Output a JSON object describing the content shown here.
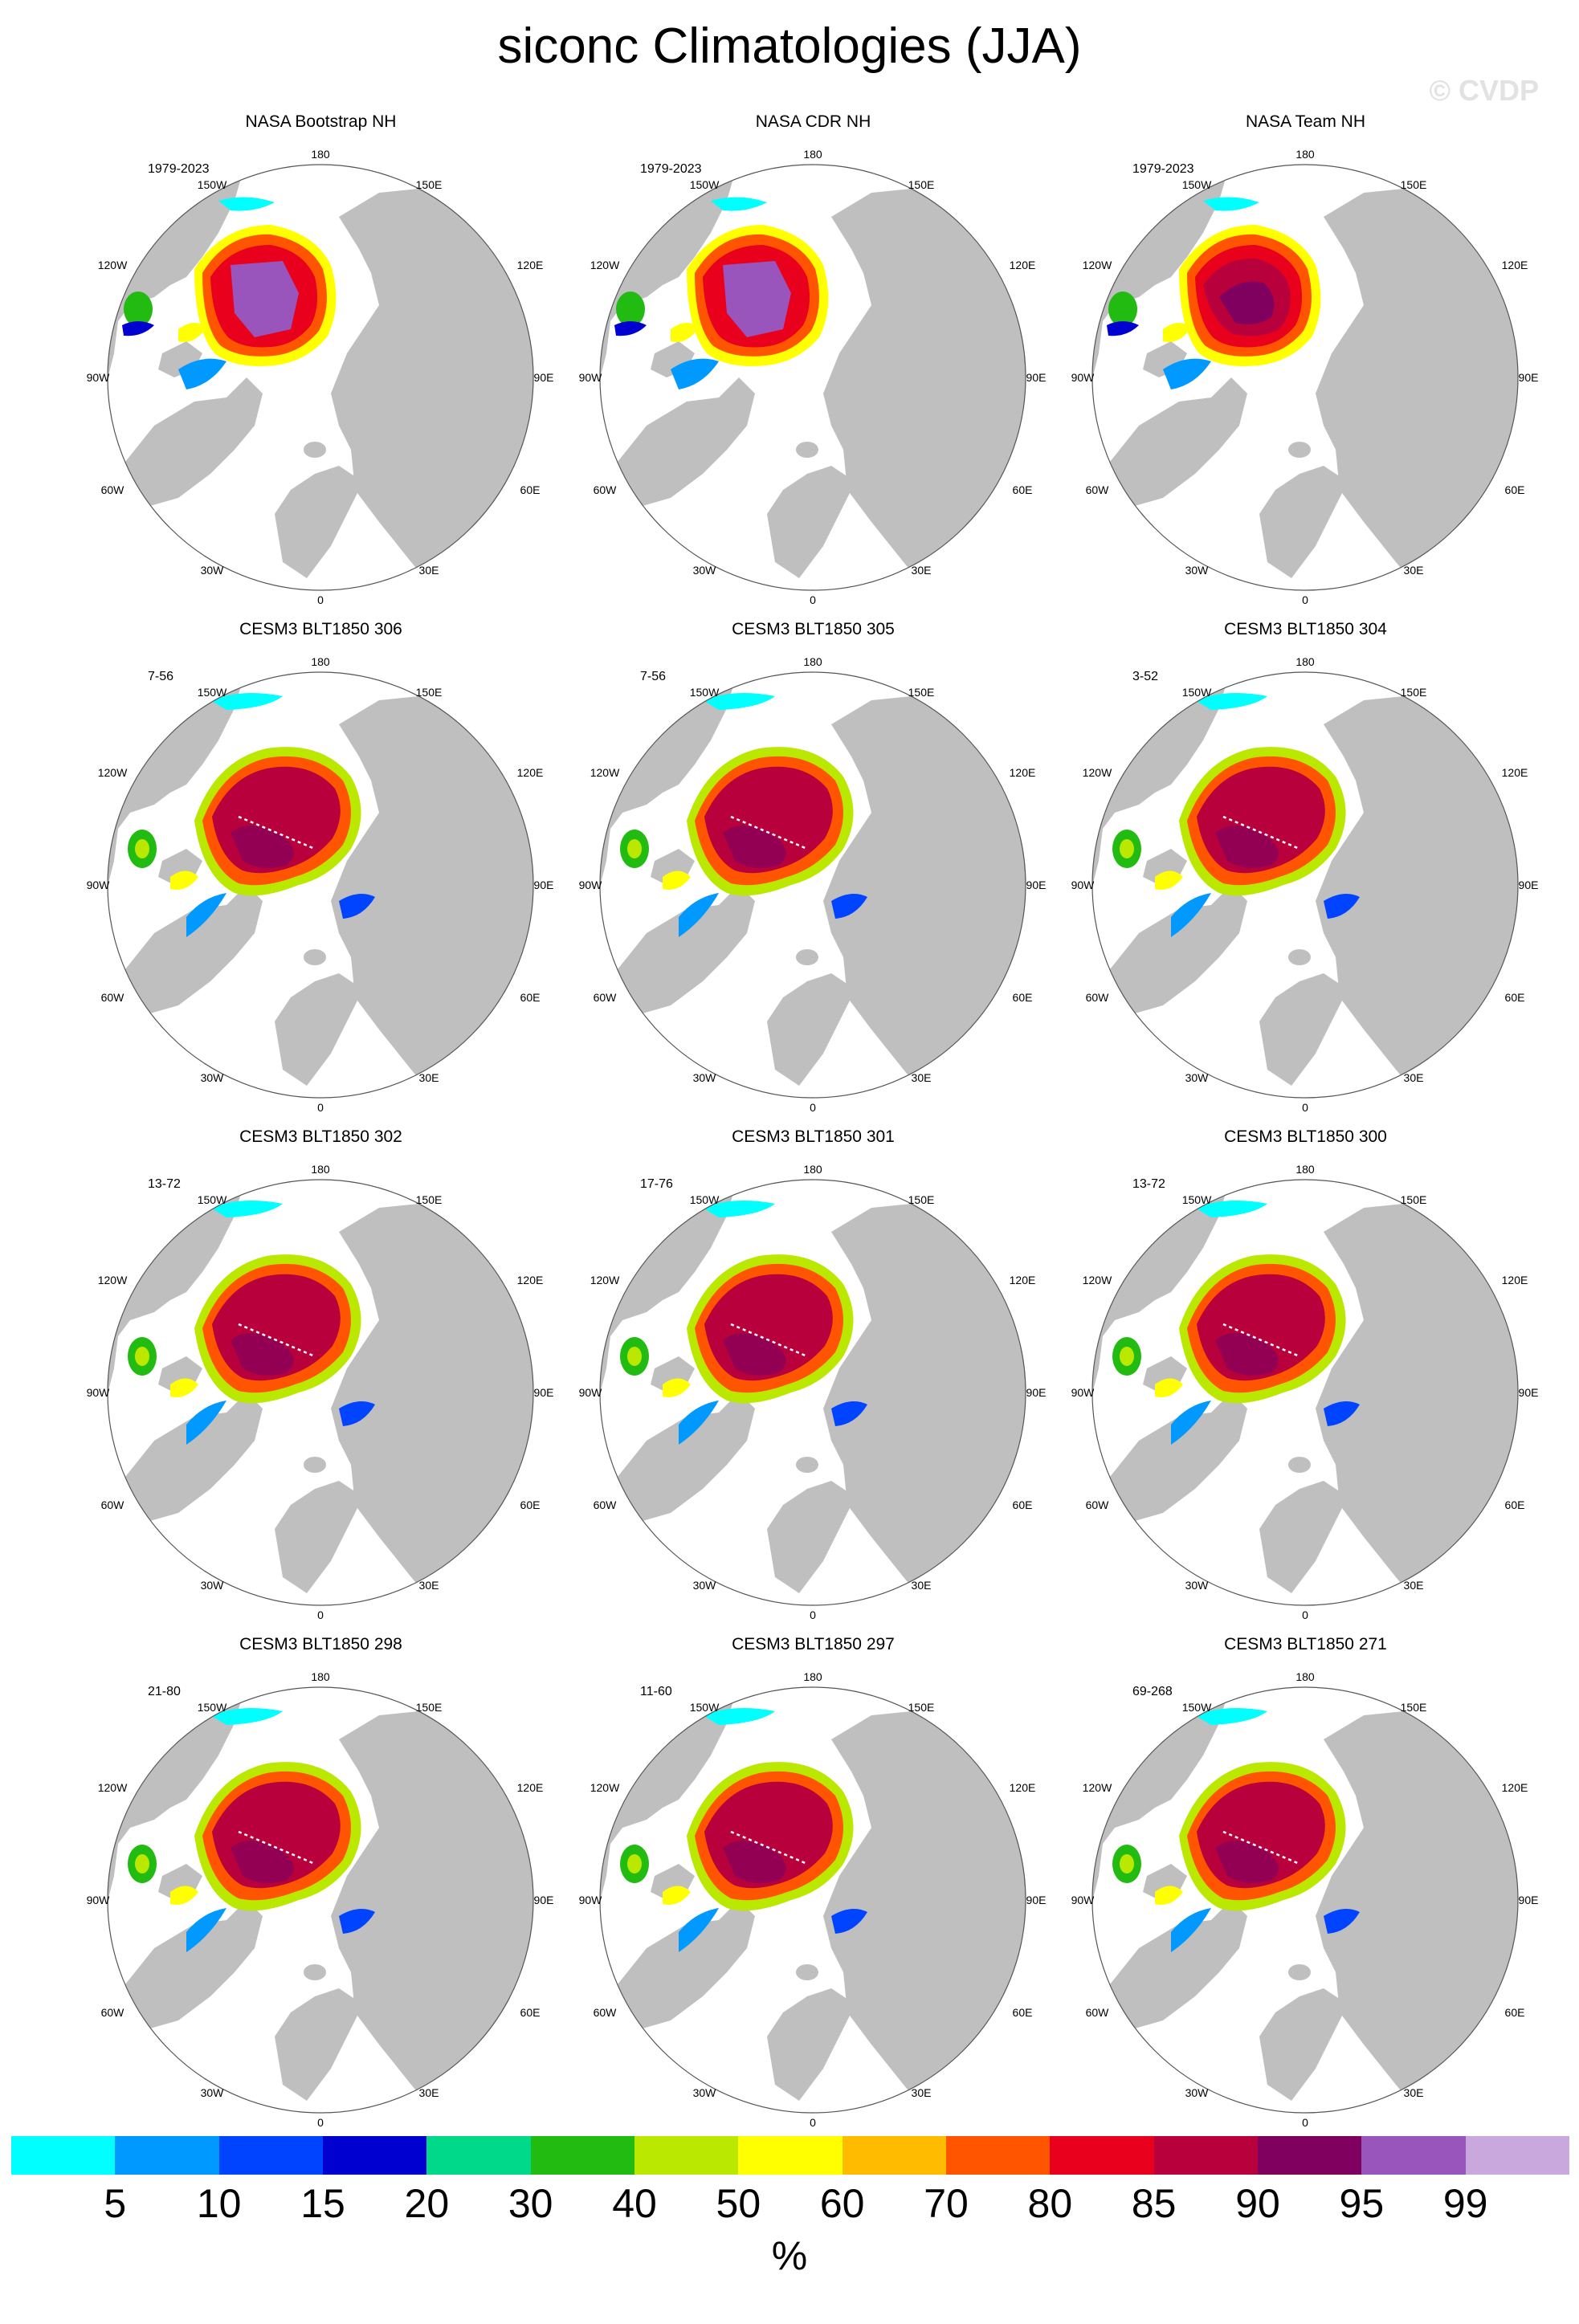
{
  "title": "siconc Climatologies (JJA)",
  "watermark": "© CVDP",
  "lon_labels": {
    "top": "180",
    "nw150": "150W",
    "ne150": "150E",
    "w120": "120W",
    "e120": "120E",
    "w90": "90W",
    "e90": "90E",
    "w60": "60W",
    "e60": "60E",
    "w30": "30W",
    "e30": "30E",
    "bottom": "0"
  },
  "panels": [
    {
      "name": "NASA Bootstrap NH",
      "years": "1979-2023",
      "style": "obs_boot"
    },
    {
      "name": "NASA CDR NH",
      "years": "1979-2023",
      "style": "obs_cdr"
    },
    {
      "name": "NASA Team NH",
      "years": "1979-2023",
      "style": "obs_team"
    },
    {
      "name": "CESM3 BLT1850 306",
      "years": "7-56",
      "style": "model"
    },
    {
      "name": "CESM3 BLT1850 305",
      "years": "7-56",
      "style": "model"
    },
    {
      "name": "CESM3 BLT1850 304",
      "years": "3-52",
      "style": "model"
    },
    {
      "name": "CESM3 BLT1850 302",
      "years": "13-72",
      "style": "model"
    },
    {
      "name": "CESM3 BLT1850 301",
      "years": "17-76",
      "style": "model"
    },
    {
      "name": "CESM3 BLT1850 300",
      "years": "13-72",
      "style": "model"
    },
    {
      "name": "CESM3 BLT1850 298",
      "years": "21-80",
      "style": "model"
    },
    {
      "name": "CESM3 BLT1850 297",
      "years": "11-60",
      "style": "model"
    },
    {
      "name": "CESM3 BLT1850 271",
      "years": "69-268",
      "style": "model"
    }
  ],
  "colorbar": {
    "colors": [
      "#00ffff",
      "#0099ff",
      "#0044ff",
      "#0000d0",
      "#00d88a",
      "#22bb11",
      "#bbe800",
      "#ffff00",
      "#ffbb00",
      "#ff5500",
      "#e8001c",
      "#b8003c",
      "#800060",
      "#9955bb",
      "#c8a8dd"
    ],
    "ticks": [
      "5",
      "10",
      "15",
      "20",
      "30",
      "40",
      "50",
      "60",
      "70",
      "80",
      "85",
      "90",
      "95",
      "99"
    ],
    "units": "%"
  },
  "colors": {
    "land": "#bfbfbf",
    "ocean": "#ffffff"
  }
}
